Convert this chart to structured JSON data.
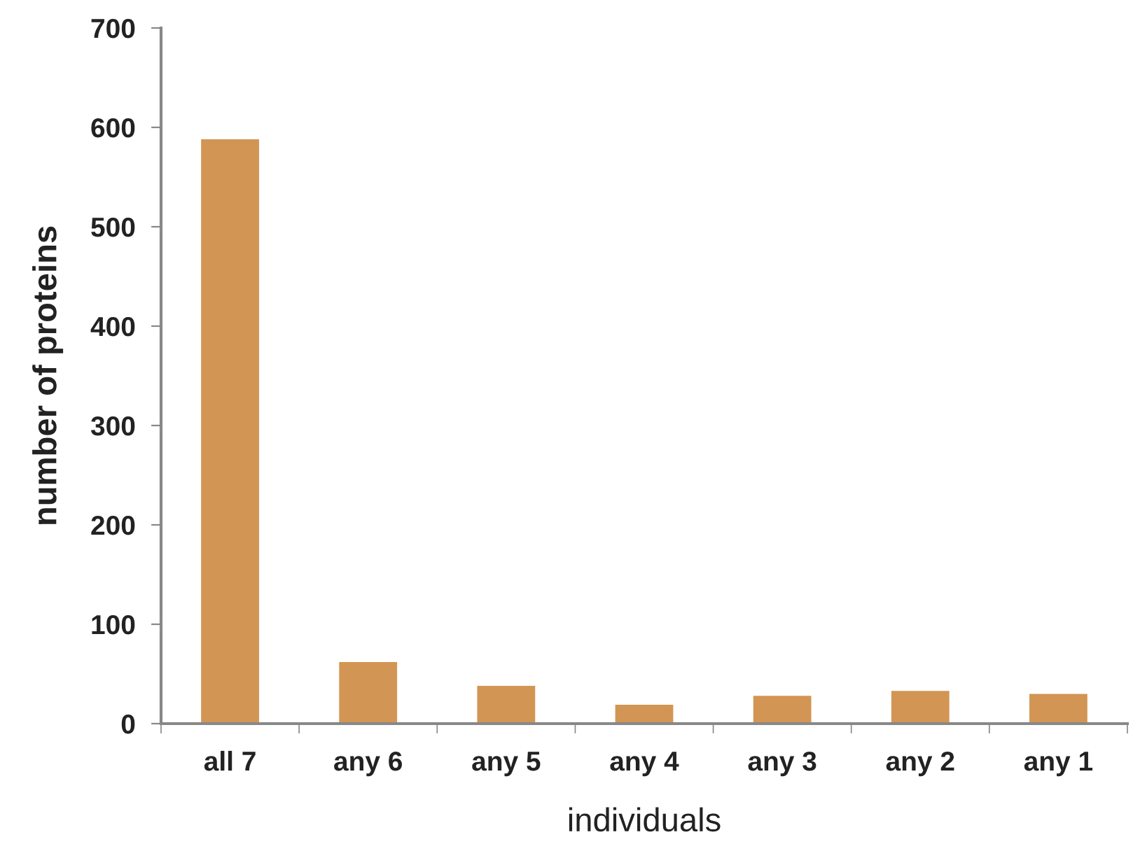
{
  "chart_data": {
    "type": "bar",
    "xlabel": "individuals",
    "ylabel": "number of proteins",
    "categories": [
      "all 7",
      "any 6",
      "any 5",
      "any 4",
      "any 3",
      "any 2",
      "any 1"
    ],
    "values": [
      588,
      62,
      38,
      19,
      28,
      33,
      30
    ],
    "color": "#d39554",
    "ylim": [
      0,
      700
    ],
    "yticks": [
      0,
      100,
      200,
      300,
      400,
      500,
      600,
      700
    ],
    "grid": false,
    "legend": false
  }
}
